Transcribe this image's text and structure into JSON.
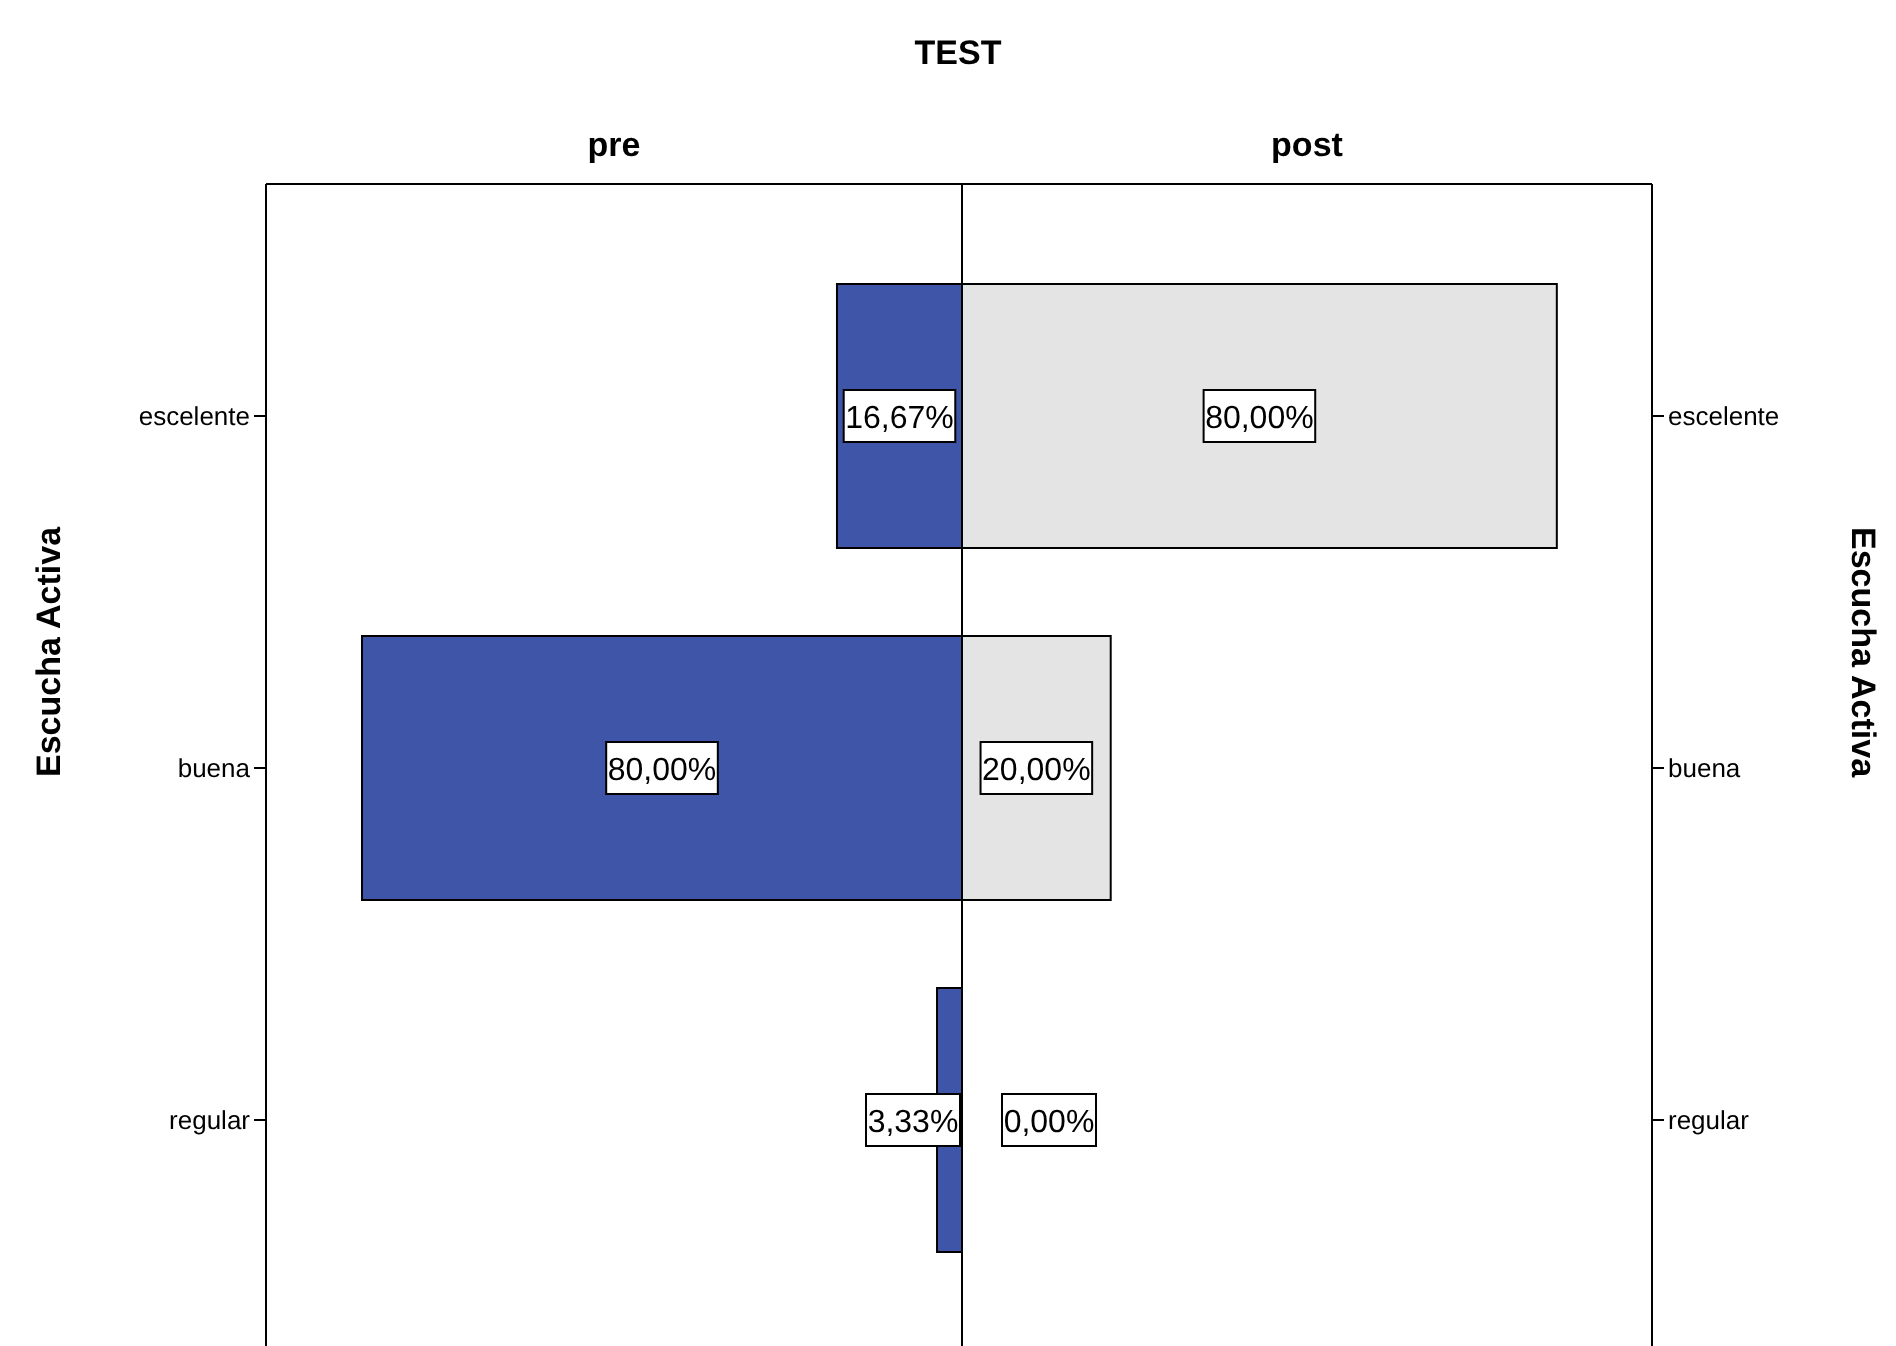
{
  "chart_data": [
    {
      "type": "bar",
      "orientation": "horizontal",
      "title": "TEST",
      "subtitle": "pre",
      "ylabel": "Escucha Activa",
      "categories": [
        "escelente",
        "buena",
        "regular"
      ],
      "values": [
        16.67,
        80,
        3.33
      ],
      "value_labels": [
        "16,67%",
        "80,00%",
        "3,33%"
      ],
      "color": "#3f55a7",
      "xlim": [
        92.8,
        0
      ],
      "tick_labels": "y"
    },
    {
      "type": "bar",
      "orientation": "horizontal",
      "subtitle": "post",
      "ylabel": "Escucha Activa",
      "categories": [
        "escelente",
        "buena",
        "regular"
      ],
      "values": [
        80,
        20,
        0
      ],
      "value_labels": [
        "80,00%",
        "20,00%",
        "0,00%"
      ],
      "color": "#e4e4e4",
      "xlim": [
        0,
        92.8
      ],
      "tick_labels": "y"
    }
  ]
}
